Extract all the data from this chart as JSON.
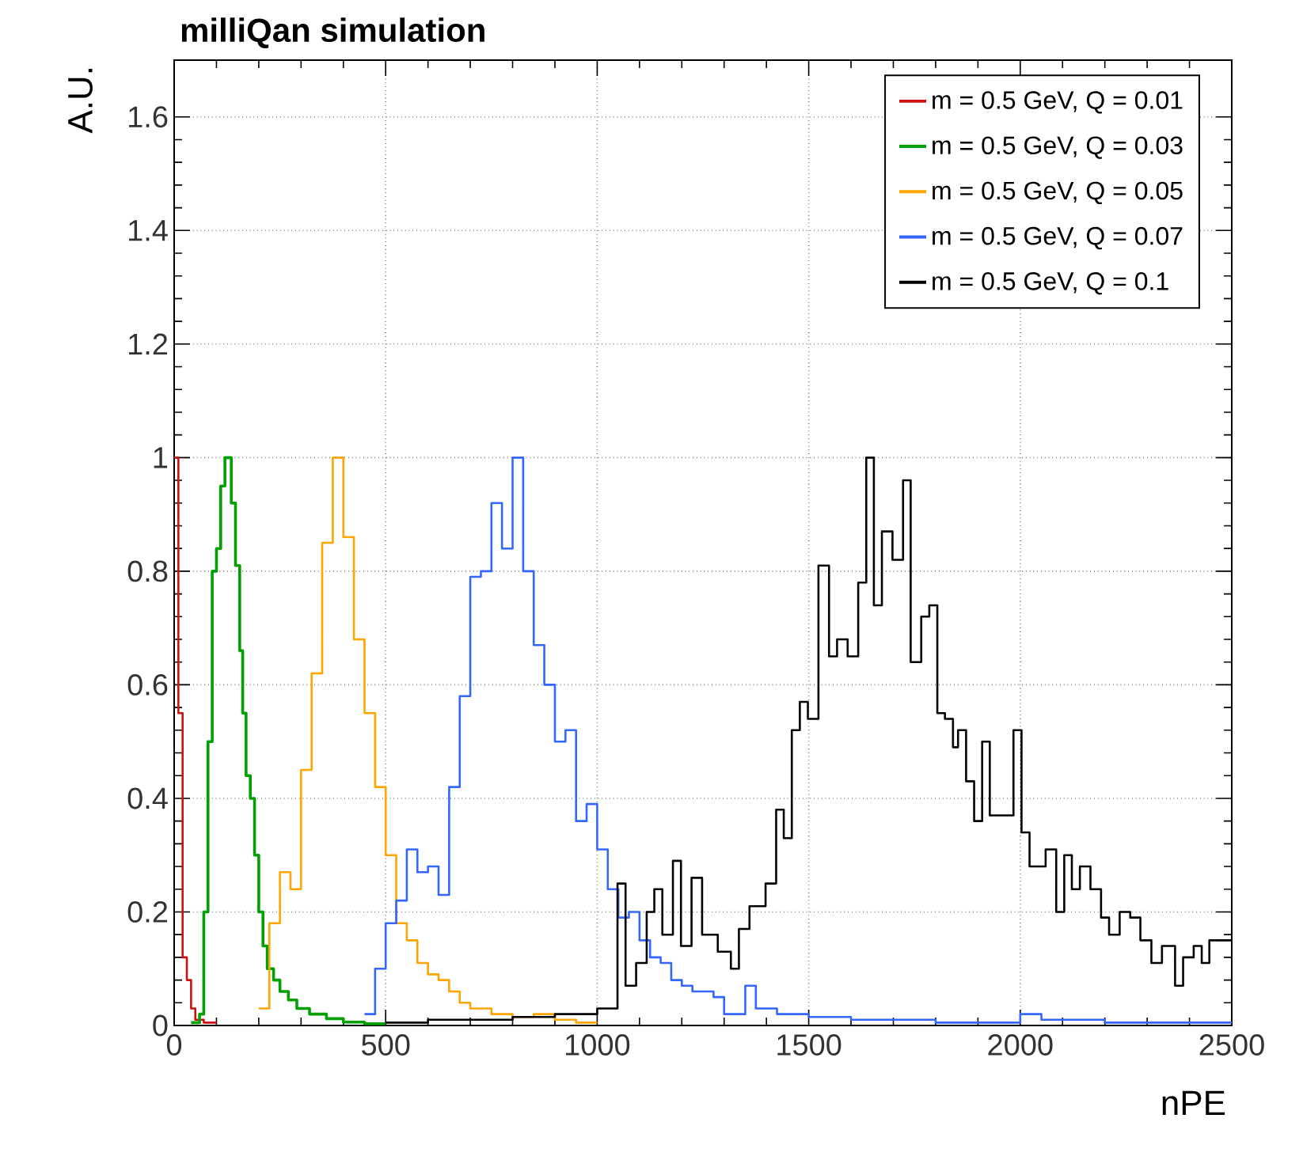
{
  "chart_data": {
    "type": "step",
    "title": "milliQan simulation",
    "xlabel": "nPE",
    "ylabel": "A.U.",
    "xlim": [
      0,
      2500
    ],
    "ylim": [
      0,
      1.7
    ],
    "xticks": [
      0,
      500,
      1000,
      1500,
      2000,
      2500
    ],
    "yticks": [
      0,
      0.2,
      0.4,
      0.6,
      0.8,
      1,
      1.2,
      1.4,
      1.6
    ],
    "grid": true,
    "legend": "top right",
    "series": [
      {
        "name": "m = 0.5 GeV, Q = 0.01",
        "color": "#cc1111",
        "x": [
          0,
          10,
          20,
          30,
          40,
          50,
          70,
          100
        ],
        "values": [
          1.0,
          0.55,
          0.12,
          0.08,
          0.03,
          0.01,
          0.005,
          0.005
        ]
      },
      {
        "name": "m = 0.5 GeV, Q = 0.03",
        "color": "#00a000",
        "x": [
          40,
          60,
          70,
          80,
          90,
          100,
          110,
          120,
          135,
          145,
          155,
          162,
          170,
          180,
          190,
          200,
          210,
          220,
          235,
          250,
          270,
          290,
          320,
          360,
          400,
          450,
          500
        ],
        "values": [
          0.005,
          0.02,
          0.2,
          0.5,
          0.8,
          0.84,
          0.95,
          1.0,
          0.92,
          0.81,
          0.66,
          0.55,
          0.44,
          0.4,
          0.3,
          0.2,
          0.14,
          0.1,
          0.08,
          0.06,
          0.045,
          0.03,
          0.02,
          0.012,
          0.006,
          0.003,
          0.003
        ]
      },
      {
        "name": "m = 0.5 GeV, Q = 0.05",
        "color": "#ffa500",
        "x": [
          200,
          225,
          250,
          275,
          300,
          325,
          350,
          375,
          400,
          425,
          450,
          475,
          500,
          525,
          550,
          575,
          600,
          625,
          650,
          675,
          700,
          750,
          800,
          850,
          900,
          950,
          1000
        ],
        "values": [
          0.03,
          0.18,
          0.27,
          0.24,
          0.45,
          0.62,
          0.85,
          1.0,
          0.86,
          0.68,
          0.55,
          0.42,
          0.3,
          0.18,
          0.15,
          0.11,
          0.09,
          0.08,
          0.06,
          0.04,
          0.03,
          0.02,
          0.015,
          0.02,
          0.01,
          0.005,
          0.005
        ]
      },
      {
        "name": "m = 0.5 GeV, Q = 0.07",
        "color": "#3366ff",
        "x": [
          450,
          475,
          500,
          525,
          550,
          575,
          600,
          625,
          650,
          675,
          700,
          725,
          750,
          775,
          800,
          825,
          850,
          875,
          900,
          925,
          950,
          975,
          1000,
          1025,
          1050,
          1075,
          1100,
          1125,
          1150,
          1175,
          1200,
          1225,
          1250,
          1275,
          1300,
          1350,
          1375,
          1425,
          1500,
          1600,
          1700,
          1800,
          2000,
          2050,
          2200,
          2500
        ],
        "values": [
          0.02,
          0.1,
          0.18,
          0.22,
          0.31,
          0.27,
          0.28,
          0.23,
          0.42,
          0.58,
          0.79,
          0.8,
          0.92,
          0.84,
          1.0,
          0.8,
          0.67,
          0.6,
          0.5,
          0.52,
          0.36,
          0.39,
          0.31,
          0.24,
          0.19,
          0.2,
          0.15,
          0.12,
          0.11,
          0.08,
          0.07,
          0.06,
          0.06,
          0.05,
          0.02,
          0.07,
          0.03,
          0.02,
          0.015,
          0.01,
          0.01,
          0.005,
          0.02,
          0.01,
          0.005,
          0.005
        ]
      },
      {
        "name": "m = 0.5 GeV, Q = 0.1",
        "color": "#000000",
        "x": [
          500,
          600,
          800,
          900,
          1000,
          1048,
          1067,
          1092,
          1117,
          1135,
          1154,
          1179,
          1198,
          1223,
          1248,
          1285,
          1316,
          1335,
          1360,
          1398,
          1423,
          1441,
          1460,
          1479,
          1498,
          1523,
          1548,
          1567,
          1592,
          1617,
          1636,
          1654,
          1673,
          1698,
          1723,
          1741,
          1766,
          1785,
          1804,
          1822,
          1841,
          1853,
          1872,
          1891,
          1910,
          1928,
          1984,
          2003,
          2022,
          2060,
          2085,
          2104,
          2122,
          2141,
          2166,
          2191,
          2210,
          2235,
          2260,
          2284,
          2310,
          2335,
          2366,
          2385,
          2410,
          2429,
          2447,
          2500
        ],
        "values": [
          0.005,
          0.01,
          0.015,
          0.02,
          0.03,
          0.25,
          0.07,
          0.11,
          0.2,
          0.24,
          0.16,
          0.29,
          0.14,
          0.26,
          0.16,
          0.13,
          0.1,
          0.17,
          0.21,
          0.25,
          0.38,
          0.33,
          0.52,
          0.57,
          0.54,
          0.81,
          0.65,
          0.68,
          0.65,
          0.78,
          1.0,
          0.74,
          0.87,
          0.82,
          0.96,
          0.64,
          0.72,
          0.74,
          0.55,
          0.54,
          0.49,
          0.52,
          0.43,
          0.36,
          0.5,
          0.37,
          0.52,
          0.34,
          0.28,
          0.31,
          0.2,
          0.3,
          0.24,
          0.28,
          0.24,
          0.19,
          0.16,
          0.2,
          0.19,
          0.15,
          0.11,
          0.14,
          0.07,
          0.12,
          0.14,
          0.11,
          0.15,
          0.15
        ]
      }
    ]
  }
}
